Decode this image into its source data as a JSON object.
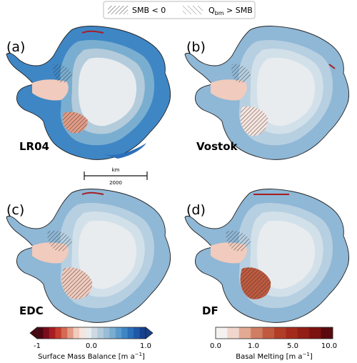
{
  "legend": {
    "item1": "SMB < 0",
    "item2_prefix": "Q",
    "item2_sub": "bm",
    "item2_suffix": " > SMB"
  },
  "panels": [
    {
      "letter": "(a)",
      "name": "LR04"
    },
    {
      "letter": "(b)",
      "name": "Vostok"
    },
    {
      "letter": "(c)",
      "name": "EDC"
    },
    {
      "letter": "(d)",
      "name": "DF"
    }
  ],
  "scalebar": {
    "unit": "km",
    "length": "2000"
  },
  "colorbar_smb": {
    "label_main": "Surface Mass Balance [m a",
    "label_exp": "−1",
    "label_end": "]",
    "ticks": [
      "-1",
      "0.0",
      "1.0"
    ],
    "colors": [
      "#4a0711",
      "#7a0c1b",
      "#a71d22",
      "#c43c2e",
      "#d56a54",
      "#e39c86",
      "#f1cbbd",
      "#f6e4de",
      "#e8ecef",
      "#cdd9e3",
      "#b3cbdb",
      "#98bdd5",
      "#7aaed0",
      "#5b9bcc",
      "#3f86c5",
      "#2c6fb9",
      "#1f58a8",
      "#17418d"
    ]
  },
  "colorbar_melt": {
    "label_main": "Basal Melting [m a",
    "label_exp": "−1",
    "label_end": "]",
    "ticks": [
      "0.0",
      "1.0",
      "5.0",
      "10.0"
    ],
    "colors": [
      "#f4f1f0",
      "#f0d6cc",
      "#e3a993",
      "#d07e63",
      "#c05a3f",
      "#b13e27",
      "#a42b1c",
      "#931e16",
      "#7b1210",
      "#5a0a0c"
    ]
  }
}
